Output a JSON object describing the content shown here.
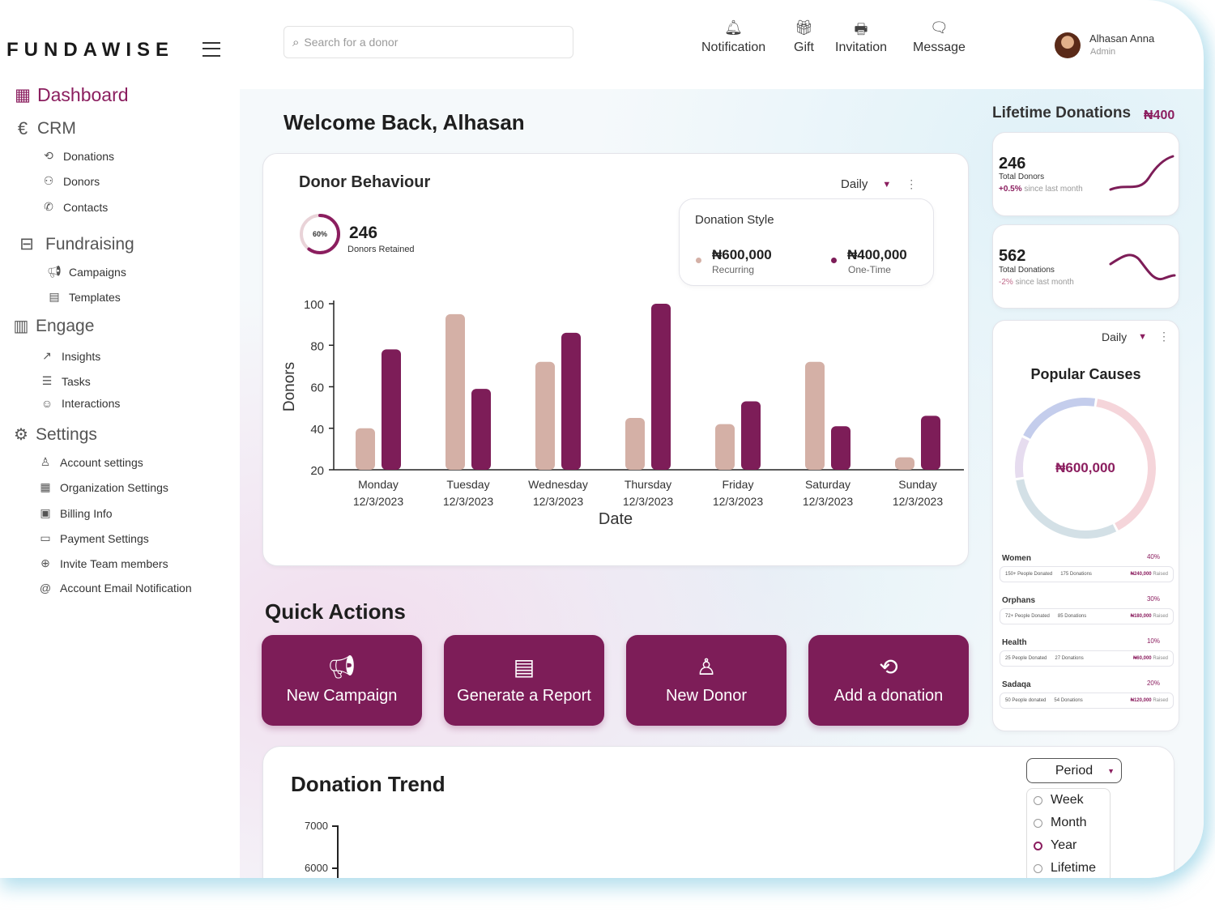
{
  "brand": "FUNDAWISE",
  "sidebar": {
    "items": [
      {
        "label": "Dashboard",
        "icon": "grid-icon",
        "level": "main",
        "active": true
      },
      {
        "label": "CRM",
        "icon": "euro-icon",
        "level": "main"
      },
      {
        "label": "Donations",
        "icon": "refresh-icon",
        "level": "sub"
      },
      {
        "label": "Donors",
        "icon": "users-icon",
        "level": "sub"
      },
      {
        "label": "Contacts",
        "icon": "phone-icon",
        "level": "sub"
      },
      {
        "label": "Fundraising",
        "icon": "fundraising-icon",
        "level": "main"
      },
      {
        "label": "Campaigns",
        "icon": "megaphone-icon",
        "level": "sub"
      },
      {
        "label": "Templates",
        "icon": "template-icon",
        "level": "sub"
      },
      {
        "label": "Engage",
        "icon": "bar-chart-icon",
        "level": "main"
      },
      {
        "label": "Insights",
        "icon": "trend-icon",
        "level": "sub"
      },
      {
        "label": "Tasks",
        "icon": "list-icon",
        "level": "sub"
      },
      {
        "label": "Interactions",
        "icon": "user-interaction-icon",
        "level": "sub"
      },
      {
        "label": "Settings",
        "icon": "gear-icon",
        "level": "main"
      },
      {
        "label": "Account settings",
        "icon": "user-icon",
        "level": "sub"
      },
      {
        "label": "Organization Settings",
        "icon": "building-icon",
        "level": "sub"
      },
      {
        "label": "Billing Info",
        "icon": "money-icon",
        "level": "sub"
      },
      {
        "label": "Payment Settings",
        "icon": "card-icon",
        "level": "sub"
      },
      {
        "label": "Invite Team members",
        "icon": "team-icon",
        "level": "sub"
      },
      {
        "label": "Account Email Notification",
        "icon": "at-icon",
        "level": "sub"
      }
    ]
  },
  "topbar": {
    "search_placeholder": "Search for a donor",
    "nav": [
      {
        "label": "Notification",
        "icon": "bell-icon"
      },
      {
        "label": "Gift",
        "icon": "gift-icon"
      },
      {
        "label": "Invitation",
        "icon": "invitation-icon"
      },
      {
        "label": "Message",
        "icon": "message-icon"
      }
    ],
    "user": {
      "name": "Alhasan Anna",
      "role": "Admin"
    }
  },
  "welcome": "Welcome Back, Alhasan",
  "donor_behaviour": {
    "title": "Donor Behaviour",
    "period": "Daily",
    "retained_pct": "60%",
    "retained_fraction": 0.6,
    "retained_count": "246",
    "retained_label": "Donors Retained",
    "donation_style": {
      "title": "Donation Style",
      "recurring_amount": "₦600,000",
      "recurring_label": "Recurring",
      "onetime_amount": "₦400,000",
      "onetime_label": "One-Time"
    }
  },
  "chart_data": {
    "type": "bar",
    "xlabel": "Date",
    "ylabel": "Donors",
    "ylim": [
      20,
      100
    ],
    "yticks": [
      20,
      40,
      60,
      80,
      100
    ],
    "categories": [
      {
        "day": "Monday",
        "date": "12/3/2023"
      },
      {
        "day": "Tuesday",
        "date": "12/3/2023"
      },
      {
        "day": "Wednesday",
        "date": "12/3/2023"
      },
      {
        "day": "Thursday",
        "date": "12/3/2023"
      },
      {
        "day": "Friday",
        "date": "12/3/2023"
      },
      {
        "day": "Saturday",
        "date": "12/3/2023"
      },
      {
        "day": "Sunday",
        "date": "12/3/2023"
      }
    ],
    "series": [
      {
        "color": "#d4b0a6",
        "values": [
          40,
          95,
          72,
          45,
          42,
          72,
          26
        ]
      },
      {
        "color": "#7d1d58",
        "values": [
          78,
          59,
          86,
          100,
          53,
          41,
          46
        ]
      }
    ]
  },
  "quick_actions": {
    "title": "Quick Actions",
    "buttons": [
      {
        "label": "New Campaign",
        "icon": "megaphone-icon"
      },
      {
        "label": "Generate a Report",
        "icon": "report-icon"
      },
      {
        "label": "New Donor",
        "icon": "user-icon"
      },
      {
        "label": "Add a donation",
        "icon": "donation-icon"
      }
    ]
  },
  "donation_trend": {
    "title": "Donation Trend",
    "yticks": [
      "7000",
      "6000"
    ],
    "period_label": "Period",
    "options": [
      {
        "label": "Week",
        "selected": false
      },
      {
        "label": "Month",
        "selected": false
      },
      {
        "label": "Year",
        "selected": true
      },
      {
        "label": "Lifetime",
        "selected": false
      }
    ]
  },
  "lifetime": {
    "title": "Lifetime Donations",
    "amount": "₦400",
    "cards": [
      {
        "value": "246",
        "label": "Total Donors",
        "change": "+0.5%",
        "change_text": "since last month",
        "change_color": "#8b1e5f"
      },
      {
        "value": "562",
        "label": "Total Donations",
        "change": "-2%",
        "change_text": "since last month",
        "change_color": "#c06a8a"
      }
    ]
  },
  "popular_causes": {
    "period": "Daily",
    "title": "Popular Causes",
    "total": "₦600,000",
    "segments": [
      {
        "name": "Women",
        "value": 40,
        "color": "#f5d5da"
      },
      {
        "name": "Orphans",
        "value": 30,
        "color": "#d3e0e6"
      },
      {
        "name": "Health",
        "value": 10,
        "color": "#e6dcef"
      },
      {
        "name": "Sadaqa",
        "value": 20,
        "color": "#c4cdec"
      }
    ],
    "causes": [
      {
        "name": "Women",
        "pct": "40%",
        "people": "150+ People Donated",
        "donations": "175 Donations",
        "amount": "₦240,000",
        "amount_sub": "Raised"
      },
      {
        "name": "Orphans",
        "pct": "30%",
        "people": "72+ People Donated",
        "donations": "85 Donations",
        "amount": "₦180,000",
        "amount_sub": "Raised"
      },
      {
        "name": "Health",
        "pct": "10%",
        "people": "25 People Donated",
        "donations": "27 Donations",
        "amount": "₦60,000",
        "amount_sub": "Raised"
      },
      {
        "name": "Sadaqa",
        "pct": "20%",
        "people": "50 People donated",
        "donations": "54 Donations",
        "amount": "₦120,000",
        "amount_sub": "Raised"
      }
    ]
  }
}
